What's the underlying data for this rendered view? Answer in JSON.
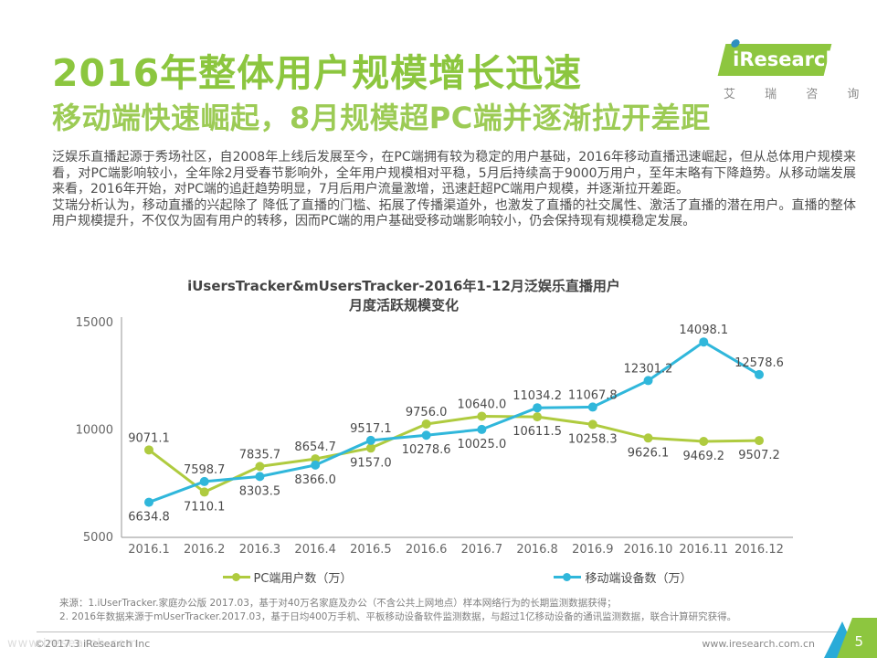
{
  "header": {
    "title": "2016年整体用户规模增长迅速",
    "subtitle": "移动端快速崛起，8月规模超PC端并逐渐拉开差距",
    "logo": {
      "brand": "iResearch",
      "tagline": "艾 瑞 咨 询"
    }
  },
  "body": {
    "paragraph1": "泛娱乐直播起源于秀场社区，自2008年上线后发展至今，在PC端拥有较为稳定的用户基础，2016年移动直播迅速崛起，但从总体用户规模来看，对PC端影响较小，全年除2月受春节影响外，全年用户规模相对平稳，5月后持续高于9000万用户，至年末略有下降趋势。从移动端发展来看，2016年开始，对PC端的追赶趋势明显，7月后用户流量激增，迅速赶超PC端用户规模，并逐渐拉开差距。",
    "paragraph2": "艾瑞分析认为，移动直播的兴起除了 降低了直播的门槛、拓展了传播渠道外，也激发了直播的社交属性、激活了直播的潜在用户。直播的整体用户规模提升，不仅仅为固有用户的转移，因而PC端的用户基础受移动端影响较小，仍会保持现有规模稳定发展。"
  },
  "chart_data": {
    "type": "line",
    "title_line1": "iUsersTracker&mUsersTracker-2016年1-12月泛娱乐直播用户",
    "title_line2": "月度活跃规模变化",
    "categories": [
      "2016.1",
      "2016.2",
      "2016.3",
      "2016.4",
      "2016.5",
      "2016.6",
      "2016.7",
      "2016.8",
      "2016.9",
      "2016.10",
      "2016.11",
      "2016.12"
    ],
    "ylim": [
      5000,
      15000
    ],
    "yticks": [
      5000,
      10000,
      15000
    ],
    "grid": false,
    "legend_position": "bottom",
    "series": [
      {
        "name": "PC端用户数（万）",
        "color": "#AFCB3F",
        "values": [
          9071.1,
          7110.1,
          8303.5,
          8654.7,
          9157.0,
          10278.6,
          10640.0,
          10611.5,
          10258.3,
          9626.1,
          9469.2,
          9507.2
        ],
        "label_side": [
          "above",
          "below",
          "below",
          "above",
          "below",
          "below",
          "above",
          "below",
          "below",
          "below",
          "below",
          "below"
        ]
      },
      {
        "name": "移动端设备数（万）",
        "color": "#30B7DB",
        "values": [
          6634.8,
          7598.7,
          7835.7,
          8366.0,
          9517.1,
          9756.0,
          10025.0,
          11034.2,
          11067.8,
          12301.2,
          14098.1,
          12578.6
        ],
        "label_side": [
          "below",
          "above",
          "above",
          "below",
          "above",
          "above",
          "below",
          "above",
          "above",
          "above",
          "above",
          "above"
        ]
      }
    ]
  },
  "source": {
    "line1": "来源：1.iUserTracker.家庭办公版 2017.03，基于对40万名家庭及办公（不含公共上网地点）样本网络行为的长期监测数据获得；",
    "line2": "2. 2016年数据来源于mUserTracker.2017.03，基于日均400万手机、平板移动设备软件监测数据，与超过1亿移动设备的通讯监测数据，联合计算研究获得。"
  },
  "footer": {
    "watermark": "www.iresearch.com",
    "copyright": "©2017.3 iResearch Inc",
    "website": "www.iresearch.com.cn",
    "page_number": "5"
  },
  "colors": {
    "title_green": "#8CC63F",
    "subtitle_green": "#9CCB55",
    "pc_line_green": "#AFCB3F",
    "mobile_line_blue": "#30B7DB",
    "logo_green": "#8DC63F",
    "logo_dot_blue": "#2E8FBE",
    "ribbon_green": "#8DC63F",
    "ribbon_blue": "#29ABD8"
  }
}
